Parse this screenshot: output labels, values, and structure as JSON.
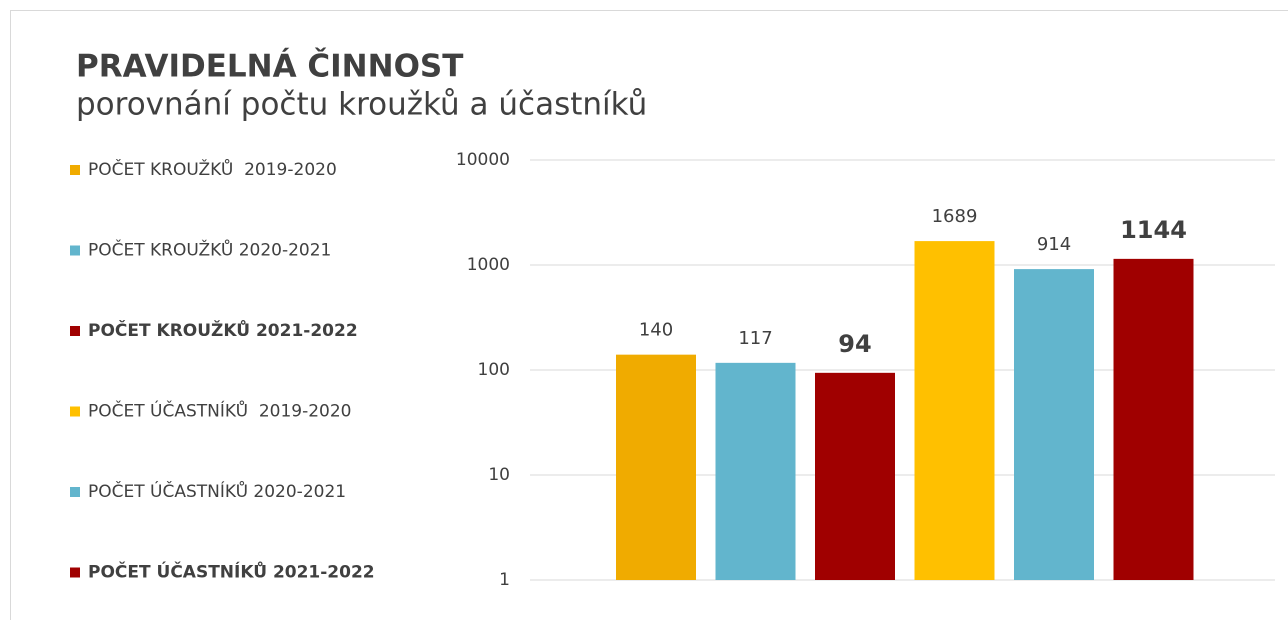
{
  "chart_data": {
    "type": "bar",
    "title": "PRAVIDELNÁ ČINNOST",
    "subtitle": "porovnání počtu kroužků a účastníků",
    "categories": [
      null
    ],
    "series": [
      {
        "name": "POČET KROUŽKŮ  2019-2020",
        "color": "#F0AB00",
        "values": [
          140
        ]
      },
      {
        "name": "POČET KROUŽKŮ 2020-2021",
        "color": "#62B5CD",
        "values": [
          117
        ]
      },
      {
        "name": "POČET KROUŽKŮ 2021-2022",
        "color": "#A00000",
        "values": [
          94
        ],
        "bold": true
      },
      {
        "name": "POČET ÚČASTNÍKŮ  2019-2020",
        "color": "#FFC000",
        "values": [
          1689
        ]
      },
      {
        "name": "POČET ÚČASTNÍKŮ 2020-2021",
        "color": "#62B5CD",
        "values": [
          914
        ]
      },
      {
        "name": "POČET ÚČASTNÍKŮ 2021-2022",
        "color": "#A00000",
        "values": [
          1144
        ],
        "bold": true
      }
    ],
    "yscale": "log",
    "ylim": [
      1,
      10000
    ],
    "yticks": [
      1,
      10,
      100,
      1000,
      10000
    ],
    "grid": true,
    "legend": "left"
  }
}
